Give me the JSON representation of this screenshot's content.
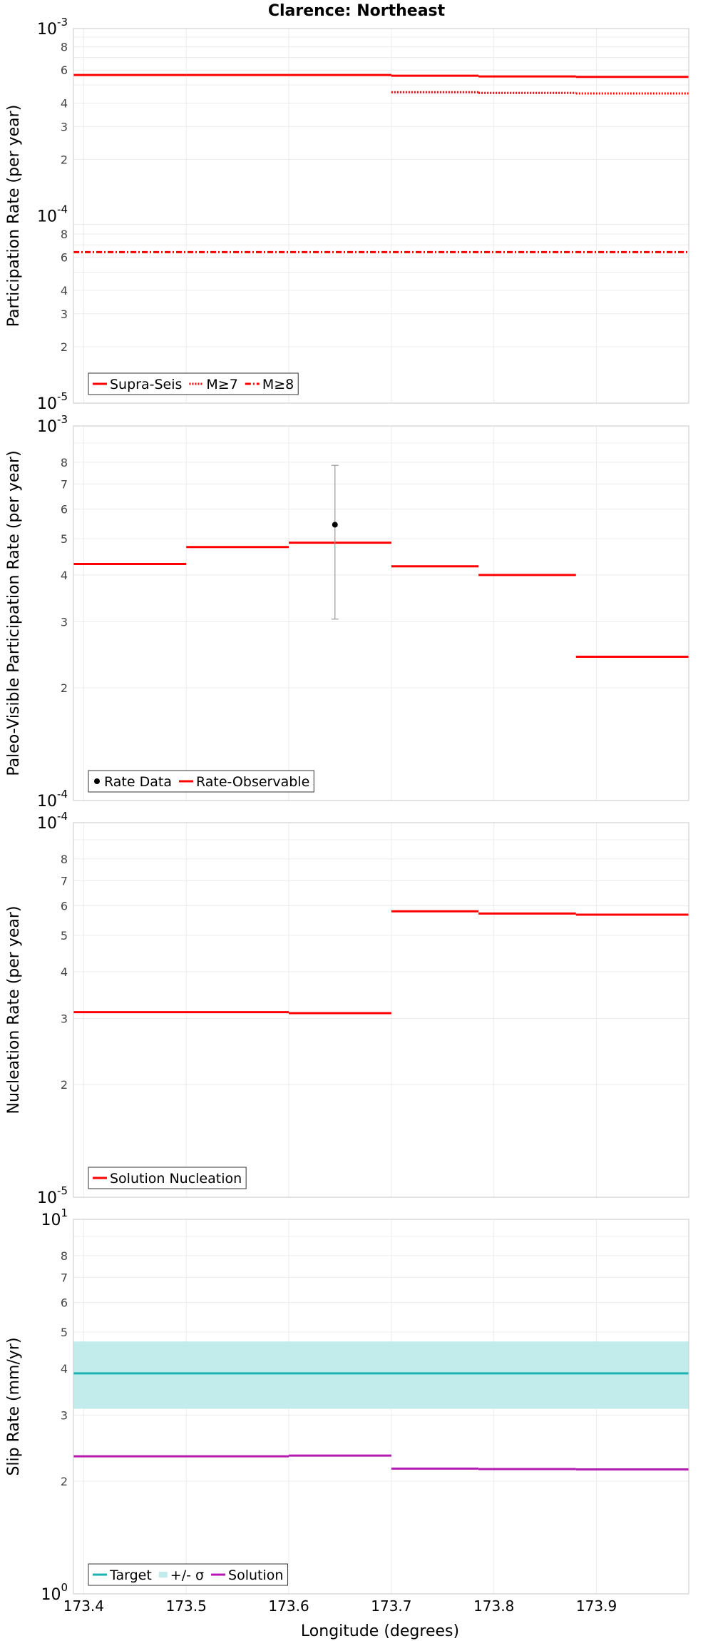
{
  "title": "Clarence: Northeast",
  "xlabel": "Longitude (degrees)",
  "colors": {
    "red": "#ff0000",
    "cyan": "#1ab2b2",
    "band": "#c2ecec",
    "magenta": "#b21ab2",
    "grid": "#ececec",
    "frame": "#c8c8c8",
    "errorbar": "#999999"
  },
  "chart_data": [
    {
      "type": "line",
      "ylabel": "Participation Rate (per year)",
      "yscale": "log",
      "ylim": [
        1e-05,
        0.001
      ],
      "xlim": [
        173.39,
        173.99
      ],
      "ytick_labels": {
        "major": [
          [
            "10",
            "-5"
          ],
          [
            "10",
            "-4"
          ],
          [
            "10",
            "-3"
          ]
        ],
        "minor": [
          "2",
          "3",
          "4",
          "6",
          "8"
        ]
      },
      "legend": {
        "position": "bottom-left",
        "entries": [
          "Supra-Seis",
          "M≥7",
          "M≥8"
        ]
      },
      "series": [
        {
          "name": "Supra-Seis",
          "style": "solid",
          "segments": [
            [
              173.39,
              173.5,
              0.000565
            ],
            [
              173.5,
              173.6,
              0.000565
            ],
            [
              173.6,
              173.7,
              0.000565
            ],
            [
              173.7,
              173.785,
              0.00056
            ],
            [
              173.785,
              173.88,
              0.000555
            ],
            [
              173.88,
              173.99,
              0.000552
            ]
          ]
        },
        {
          "name": "M≥7",
          "style": "dotted",
          "segments": [
            [
              173.7,
              173.785,
              0.000457
            ],
            [
              173.785,
              173.88,
              0.000453
            ],
            [
              173.88,
              173.99,
              0.00045
            ]
          ]
        },
        {
          "name": "M≥8",
          "style": "dashdot",
          "segments": [
            [
              173.39,
              173.99,
              6.4e-05
            ]
          ]
        }
      ]
    },
    {
      "type": "line",
      "ylabel": "Paleo-Visible Participation Rate (per year)",
      "yscale": "log",
      "ylim": [
        0.0001,
        0.001
      ],
      "xlim": [
        173.39,
        173.99
      ],
      "ytick_labels": {
        "major": [
          [
            "10",
            "-4"
          ],
          [
            "10",
            "-3"
          ]
        ],
        "minor": [
          "2",
          "3",
          "4",
          "5",
          "6",
          "7",
          "8"
        ]
      },
      "legend": {
        "position": "bottom-left",
        "entries": [
          "Rate Data",
          "Rate-Observable"
        ]
      },
      "points": [
        {
          "name": "Rate Data",
          "x": 173.645,
          "y": 0.000545,
          "ylow": 0.000305,
          "yhigh": 0.000785
        }
      ],
      "series": [
        {
          "name": "Rate-Observable",
          "style": "solid",
          "segments": [
            [
              173.39,
              173.5,
              0.000428
            ],
            [
              173.5,
              173.6,
              0.000475
            ],
            [
              173.6,
              173.7,
              0.000488
            ],
            [
              173.7,
              173.785,
              0.000422
            ],
            [
              173.785,
              173.88,
              0.0004
            ],
            [
              173.88,
              173.99,
              0.000242
            ]
          ]
        }
      ]
    },
    {
      "type": "line",
      "ylabel": "Nucleation Rate (per year)",
      "yscale": "log",
      "ylim": [
        1e-05,
        0.0001
      ],
      "xlim": [
        173.39,
        173.99
      ],
      "ytick_labels": {
        "major": [
          [
            "10",
            "-5"
          ],
          [
            "10",
            "-4"
          ]
        ],
        "minor": [
          "2",
          "3",
          "4",
          "5",
          "6",
          "7",
          "8"
        ]
      },
      "legend": {
        "position": "bottom-left",
        "entries": [
          "Solution Nucleation"
        ]
      },
      "series": [
        {
          "name": "Solution Nucleation",
          "style": "solid",
          "segments": [
            [
              173.39,
              173.6,
              3.12e-05
            ],
            [
              173.6,
              173.7,
              3.1e-05
            ],
            [
              173.7,
              173.785,
              5.8e-05
            ],
            [
              173.785,
              173.88,
              5.72e-05
            ],
            [
              173.88,
              173.99,
              5.68e-05
            ]
          ]
        }
      ]
    },
    {
      "type": "line",
      "ylabel": "Slip Rate (mm/yr)",
      "yscale": "log",
      "ylim": [
        1,
        10
      ],
      "xlim": [
        173.39,
        173.99
      ],
      "xticks": [
        173.4,
        173.5,
        173.6,
        173.7,
        173.8,
        173.9
      ],
      "xtick_labels": [
        "173.4",
        "173.5",
        "173.6",
        "173.7",
        "173.8",
        "173.9"
      ],
      "ytick_labels": {
        "major": [
          [
            "10",
            "0"
          ],
          [
            "10",
            "1"
          ]
        ],
        "minor": [
          "2",
          "3",
          "4",
          "5",
          "6",
          "7",
          "8"
        ]
      },
      "legend": {
        "position": "bottom-left",
        "entries": [
          "Target",
          "+/- σ",
          "Solution"
        ]
      },
      "band": {
        "name": "+/- σ",
        "low": 3.12,
        "high": 4.72
      },
      "series": [
        {
          "name": "Target",
          "style": "solid",
          "segments": [
            [
              173.39,
              173.99,
              3.88
            ]
          ]
        },
        {
          "name": "Solution",
          "style": "solid",
          "segments": [
            [
              173.39,
              173.6,
              2.33
            ],
            [
              173.6,
              173.7,
              2.34
            ],
            [
              173.7,
              173.785,
              2.16
            ],
            [
              173.785,
              173.88,
              2.155
            ],
            [
              173.88,
              173.99,
              2.15
            ]
          ]
        }
      ]
    }
  ]
}
